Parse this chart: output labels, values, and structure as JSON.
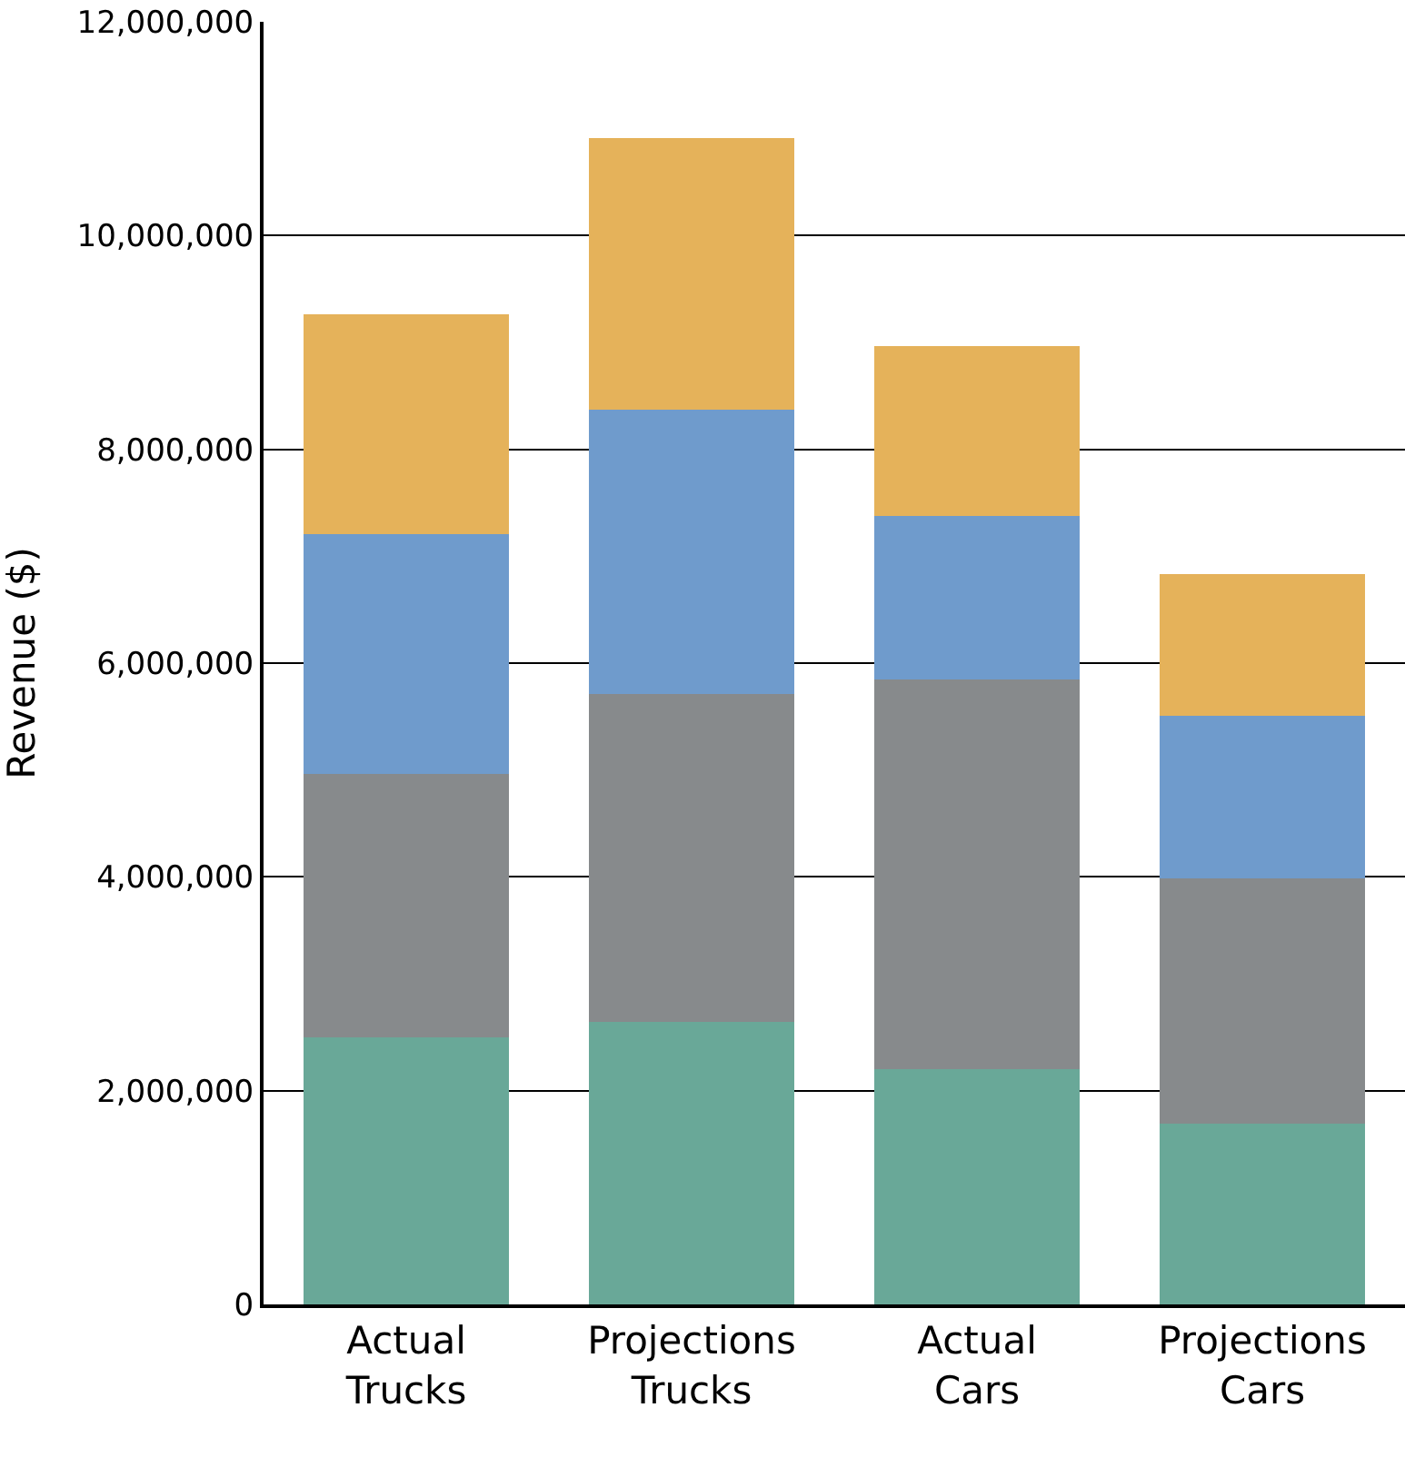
{
  "chart_data": {
    "type": "bar",
    "stacked": true,
    "ylabel": "Revenue ($)",
    "categories": [
      "Actual Trucks",
      "Projections Trucks",
      "Actual Cars",
      "Projections Cars"
    ],
    "series": [
      {
        "color": "#69a898",
        "values": [
          2500000,
          2640000,
          2200000,
          1690000
        ]
      },
      {
        "color": "#878a8c",
        "values": [
          2460000,
          3070000,
          3650000,
          2300000
        ]
      },
      {
        "color": "#6f9bcc",
        "values": [
          2250000,
          2660000,
          1530000,
          1520000
        ]
      },
      {
        "color": "#e5b25a",
        "values": [
          2050000,
          2540000,
          1590000,
          1320000
        ]
      }
    ],
    "ylim": [
      0,
      12000000
    ],
    "yticks": [
      0,
      {
        "value": 2000000,
        "label": "2,000,000"
      },
      {
        "value": 4000000,
        "label": "4,000,000"
      },
      {
        "value": 6000000,
        "label": "6,000,000"
      },
      {
        "value": 8000000,
        "label": "8,000,000"
      },
      {
        "value": 10000000,
        "label": "10,000,000"
      },
      {
        "value": 12000000,
        "label": "12,000,000"
      }
    ],
    "grid": "y"
  }
}
